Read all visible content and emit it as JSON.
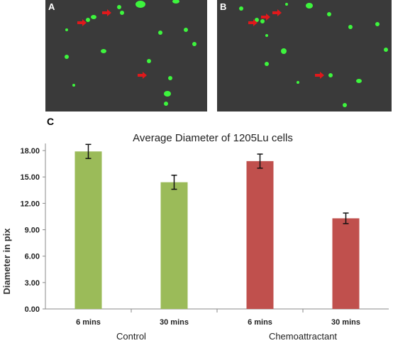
{
  "panels": {
    "a": {
      "label": "A"
    },
    "b": {
      "label": "B"
    },
    "c": {
      "label": "C"
    }
  },
  "colors": {
    "panel_bg": "#3a3a3a",
    "cell_green": "#3df53d",
    "arrow_red": "#e0181b",
    "control_bar": "#9bbb59",
    "chemo_bar": "#c0504d"
  },
  "chart_data": {
    "type": "bar",
    "title": "Average Diameter of 1205Lu cells",
    "ylabel": "Diameter in pix",
    "xlabel": "",
    "ylim": [
      0,
      18
    ],
    "yticks": [
      "0.00",
      "3.00",
      "6.00",
      "9.00",
      "12.00",
      "15.00",
      "18.00"
    ],
    "categories": [
      "6 mins",
      "30 mins",
      "6 mins",
      "30 mins"
    ],
    "groups": [
      {
        "name": "Control",
        "categories": [
          0,
          1
        ]
      },
      {
        "name": "Chemoattractant",
        "categories": [
          2,
          3
        ]
      }
    ],
    "values": [
      17.9,
      14.4,
      16.8,
      10.3
    ],
    "errors": [
      0.8,
      0.8,
      0.8,
      0.6
    ],
    "bar_colors": [
      "#9bbb59",
      "#9bbb59",
      "#c0504d",
      "#c0504d"
    ],
    "grid": false,
    "legend": "none"
  }
}
